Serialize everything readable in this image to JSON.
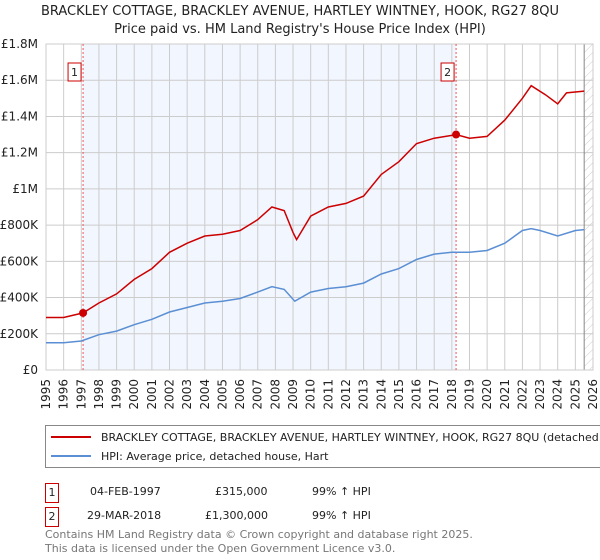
{
  "chart_data": {
    "type": "line",
    "title": "BRACKLEY COTTAGE, BRACKLEY AVENUE, HARTLEY WINTNEY, HOOK, RG27 8QU",
    "subtitle": "Price paid vs. HM Land Registry's House Price Index (HPI)",
    "xlim": [
      1995,
      2026
    ],
    "ylim": [
      0,
      1800000
    ],
    "yticks": [
      {
        "v": 0,
        "label": "£0"
      },
      {
        "v": 200000,
        "label": "£200K"
      },
      {
        "v": 400000,
        "label": "£400K"
      },
      {
        "v": 600000,
        "label": "£600K"
      },
      {
        "v": 800000,
        "label": "£800K"
      },
      {
        "v": 1000000,
        "label": "£1M"
      },
      {
        "v": 1200000,
        "label": "£1.2M"
      },
      {
        "v": 1400000,
        "label": "£1.4M"
      },
      {
        "v": 1600000,
        "label": "£1.6M"
      },
      {
        "v": 1800000,
        "label": "£1.8M"
      }
    ],
    "xticks": [
      "1995",
      "1996",
      "1997",
      "1998",
      "1999",
      "2000",
      "2001",
      "2002",
      "2003",
      "2004",
      "2005",
      "2006",
      "2007",
      "2008",
      "2009",
      "2010",
      "2011",
      "2012",
      "2013",
      "2014",
      "2015",
      "2016",
      "2017",
      "2018",
      "2019",
      "2020",
      "2021",
      "2022",
      "2023",
      "2024",
      "2025",
      "2026"
    ],
    "grid": true,
    "series": [
      {
        "name": "BRACKLEY COTTAGE, BRACKLEY AVENUE, HARTLEY WINTNEY, HOOK, RG27 8QU (detached house)",
        "color": "#cc0000",
        "x": [
          1995,
          1996,
          1997.1,
          1998,
          1999,
          2000,
          2001,
          2002,
          2003,
          2004,
          2005,
          2006,
          2007,
          2007.8,
          2008.5,
          2009.0,
          2009.2,
          2010,
          2011,
          2012,
          2013,
          2014,
          2015,
          2016,
          2017,
          2018.25,
          2019,
          2020,
          2021,
          2022,
          2022.5,
          2023.3,
          2024,
          2024.5,
          2025.5
        ],
        "y": [
          290000,
          290000,
          315000,
          370000,
          420000,
          500000,
          560000,
          650000,
          700000,
          740000,
          750000,
          770000,
          830000,
          900000,
          880000,
          760000,
          720000,
          850000,
          900000,
          920000,
          960000,
          1080000,
          1150000,
          1250000,
          1280000,
          1300000,
          1280000,
          1290000,
          1380000,
          1500000,
          1570000,
          1520000,
          1470000,
          1530000,
          1540000
        ]
      },
      {
        "name": "HPI: Average price, detached house, Hart",
        "color": "#5b8fd4",
        "x": [
          1995,
          1996,
          1997,
          1998,
          1999,
          2000,
          2001,
          2002,
          2003,
          2004,
          2005,
          2006,
          2007,
          2007.8,
          2008.5,
          2009.1,
          2010,
          2011,
          2012,
          2013,
          2014,
          2015,
          2016,
          2017,
          2018,
          2019,
          2020,
          2021,
          2022,
          2022.5,
          2023,
          2024,
          2025,
          2025.5
        ],
        "y": [
          150000,
          150000,
          160000,
          195000,
          215000,
          250000,
          280000,
          320000,
          345000,
          370000,
          380000,
          395000,
          430000,
          460000,
          445000,
          380000,
          430000,
          450000,
          460000,
          480000,
          530000,
          560000,
          610000,
          640000,
          650000,
          650000,
          660000,
          700000,
          770000,
          780000,
          770000,
          740000,
          770000,
          775000
        ]
      }
    ],
    "sales": [
      {
        "label": "1",
        "x": 1997.1,
        "y": 315000
      },
      {
        "label": "2",
        "x": 2018.24,
        "y": 1300000
      }
    ],
    "shaded_range": [
      1997.1,
      2018.24
    ],
    "forecast_hatch_from": 2025.5
  },
  "legend": {
    "property": "BRACKLEY COTTAGE, BRACKLEY AVENUE, HARTLEY WINTNEY, HOOK, RG27 8QU (detached house)",
    "hpi": "HPI: Average price, detached house, Hart"
  },
  "transactions": [
    {
      "num": "1",
      "date": "04-FEB-1997",
      "price": "£315,000",
      "hpi": "99% ↑ HPI"
    },
    {
      "num": "2",
      "date": "29-MAR-2018",
      "price": "£1,300,000",
      "hpi": "99% ↑ HPI"
    }
  ],
  "footer": {
    "line1": "Contains HM Land Registry data © Crown copyright and database right 2025.",
    "line2": "This data is licensed under the Open Government Licence v3.0."
  }
}
